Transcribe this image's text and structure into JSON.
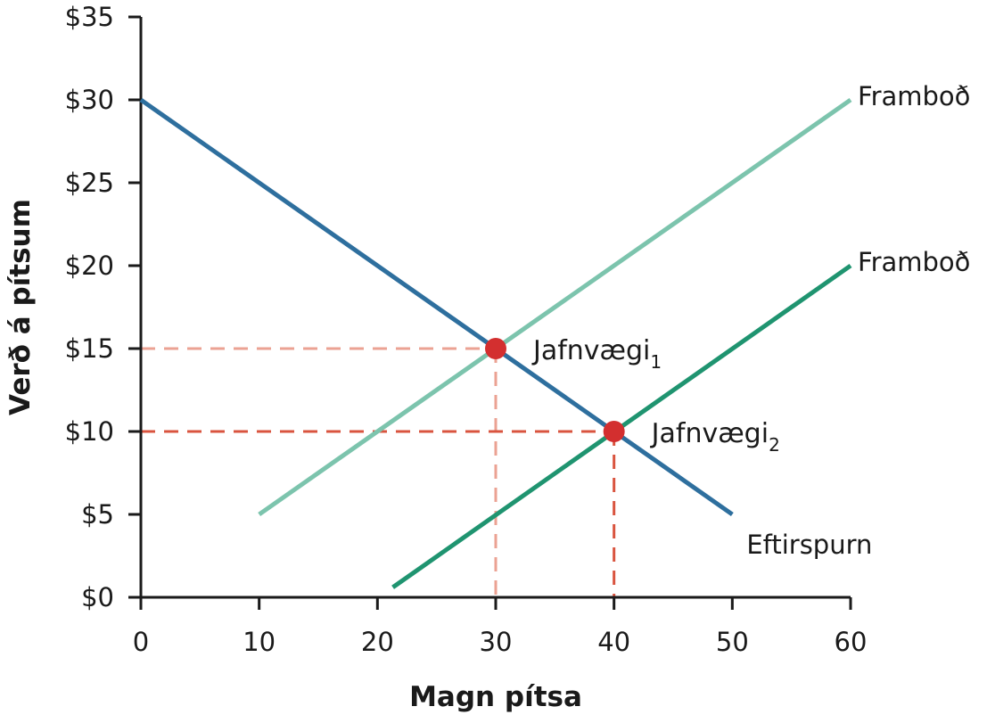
{
  "chart_data": {
    "type": "line",
    "xlabel": "Magn pítsa",
    "ylabel": "Verð á pítsum",
    "xlim": [
      0,
      60
    ],
    "ylim": [
      0,
      35
    ],
    "x_ticks": [
      0,
      10,
      20,
      30,
      40,
      50,
      60
    ],
    "y_ticks": [
      0,
      5,
      10,
      15,
      20,
      25,
      30,
      35
    ],
    "y_tick_labels": [
      "$0",
      "$5",
      "$10",
      "$15",
      "$20",
      "$25",
      "$30",
      "$35"
    ],
    "x_tick_labels": [
      "0",
      "10",
      "20",
      "30",
      "40",
      "50",
      "60"
    ],
    "grid": false,
    "series": [
      {
        "name": "Eftirspurn",
        "label": "Eftirspurn",
        "color": "#2e6f9e",
        "points": [
          [
            0,
            30
          ],
          [
            50,
            5
          ]
        ]
      },
      {
        "name": "Framboð",
        "label": "Framboð",
        "color": "#7cc4ad",
        "points": [
          [
            10,
            5
          ],
          [
            60,
            30
          ]
        ]
      },
      {
        "name": "Framboð",
        "label": "Framboð",
        "color": "#1f9470",
        "points": [
          [
            21.3,
            0.6
          ],
          [
            60,
            20
          ]
        ]
      }
    ],
    "equilibria": [
      {
        "label": "Jafnvægi",
        "subscript": "1",
        "x": 30,
        "y": 15,
        "guide_color": "#eba293"
      },
      {
        "label": "Jafnvægi",
        "subscript": "2",
        "x": 40,
        "y": 10,
        "guide_color": "#d9543f"
      }
    ],
    "point_color": "#d32f2f",
    "axis_color": "#1a1a1a"
  }
}
